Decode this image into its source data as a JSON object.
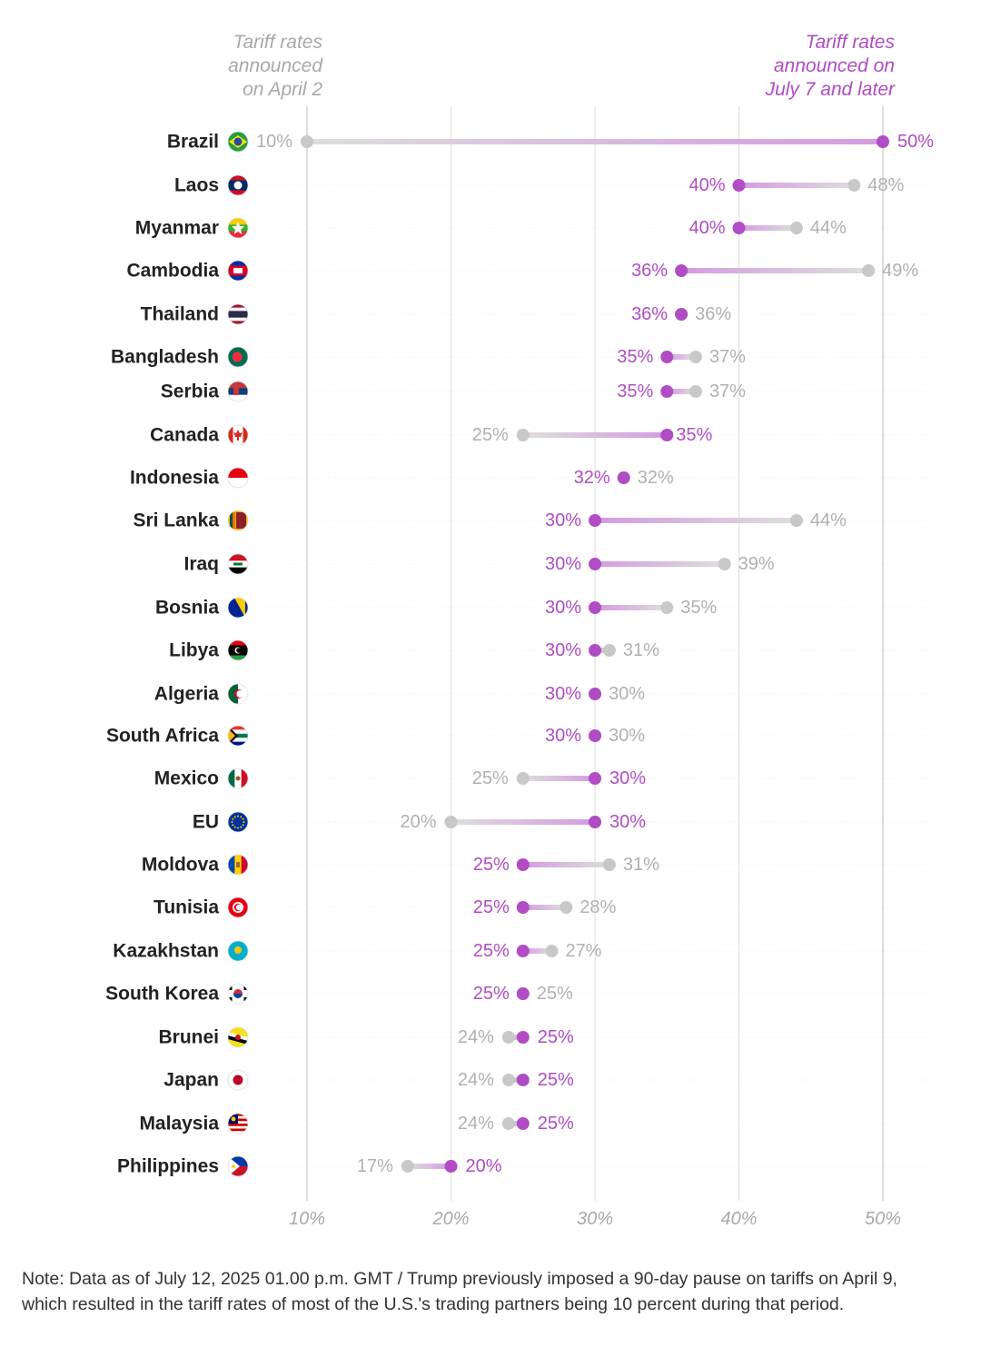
{
  "colors": {
    "new": "#b04cc4",
    "old": "#c8c8c8",
    "old_text": "#b0b0b0",
    "axis_text": "#a8a8a8",
    "grid": "#dddddd",
    "country_text": "#222222"
  },
  "header": {
    "left": [
      "Tariff rates",
      "announced",
      "on April 2"
    ],
    "right": [
      "Tariff rates",
      "announced on",
      "July 7 and later"
    ]
  },
  "note": {
    "line1": "Note: Data as of July 12, 2025 01.00 p.m. GMT / Trump previously imposed a 90-day pause on tariffs on April 9,",
    "line2": "which resulted in the tariff rates of most of the U.S.'s trading partners being 10 percent during that period."
  },
  "chart_data": {
    "type": "dumbbell",
    "x_ticks": [
      "10%",
      "20%",
      "30%",
      "40%",
      "50%"
    ],
    "xlim": [
      10,
      50
    ],
    "rows": [
      {
        "country": "Brazil",
        "april2": 10,
        "july7": 50,
        "flag": "brazil-flag-icon"
      },
      {
        "country": "Laos",
        "april2": 48,
        "july7": 40,
        "flag": "laos-flag-icon"
      },
      {
        "country": "Myanmar",
        "april2": 44,
        "july7": 40,
        "flag": "myanmar-flag-icon"
      },
      {
        "country": "Cambodia",
        "april2": 49,
        "july7": 36,
        "flag": "cambodia-flag-icon"
      },
      {
        "country": "Thailand",
        "april2": 36,
        "july7": 36,
        "flag": "thailand-flag-icon"
      },
      {
        "country": "Bangladesh",
        "april2": 37,
        "july7": 35,
        "flag": "bangladesh-flag-icon"
      },
      {
        "country": "Serbia",
        "april2": 37,
        "july7": 35,
        "flag": "serbia-flag-icon"
      },
      {
        "country": "Canada",
        "april2": 25,
        "july7": 35,
        "flag": "canada-flag-icon"
      },
      {
        "country": "Indonesia",
        "april2": 32,
        "july7": 32,
        "flag": "indonesia-flag-icon"
      },
      {
        "country": "Sri Lanka",
        "april2": 44,
        "july7": 30,
        "flag": "sri-lanka-flag-icon"
      },
      {
        "country": "Iraq",
        "april2": 39,
        "july7": 30,
        "flag": "iraq-flag-icon"
      },
      {
        "country": "Bosnia",
        "april2": 35,
        "july7": 30,
        "flag": "bosnia-flag-icon"
      },
      {
        "country": "Libya",
        "april2": 31,
        "july7": 30,
        "flag": "libya-flag-icon"
      },
      {
        "country": "Algeria",
        "april2": 30,
        "july7": 30,
        "flag": "algeria-flag-icon"
      },
      {
        "country": "South Africa",
        "april2": 30,
        "july7": 30,
        "flag": "south-africa-flag-icon"
      },
      {
        "country": "Mexico",
        "april2": 25,
        "july7": 30,
        "flag": "mexico-flag-icon"
      },
      {
        "country": "EU",
        "april2": 20,
        "july7": 30,
        "flag": "eu-flag-icon"
      },
      {
        "country": "Moldova",
        "april2": 31,
        "july7": 25,
        "flag": "moldova-flag-icon"
      },
      {
        "country": "Tunisia",
        "april2": 28,
        "july7": 25,
        "flag": "tunisia-flag-icon"
      },
      {
        "country": "Kazakhstan",
        "april2": 27,
        "july7": 25,
        "flag": "kazakhstan-flag-icon"
      },
      {
        "country": "South Korea",
        "april2": 25,
        "july7": 25,
        "flag": "south-korea-flag-icon"
      },
      {
        "country": "Brunei",
        "april2": 24,
        "july7": 25,
        "flag": "brunei-flag-icon"
      },
      {
        "country": "Japan",
        "april2": 24,
        "july7": 25,
        "flag": "japan-flag-icon"
      },
      {
        "country": "Malaysia",
        "april2": 24,
        "july7": 25,
        "flag": "malaysia-flag-icon"
      },
      {
        "country": "Philippines",
        "april2": 17,
        "july7": 20,
        "flag": "philippines-flag-icon"
      }
    ]
  }
}
